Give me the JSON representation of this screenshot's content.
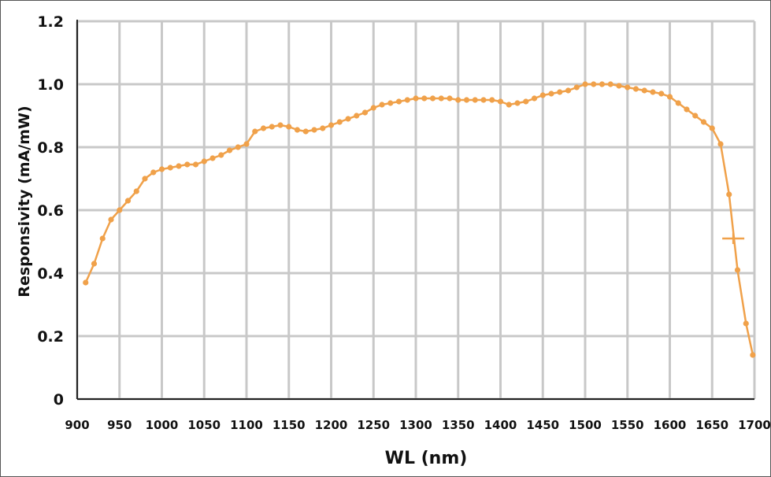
{
  "chart_data": {
    "type": "line",
    "xlabel": "WL (nm)",
    "ylabel": "Responsivity (mA/mW)",
    "xlim": [
      900,
      1700
    ],
    "ylim": [
      0,
      1.2
    ],
    "x_ticks": [
      "900",
      "950",
      "1000",
      "1050",
      "1100",
      "1150",
      "1200",
      "1250",
      "1300",
      "1350",
      "1400",
      "1450",
      "1500",
      "1550",
      "1600",
      "1650",
      "1700"
    ],
    "y_ticks": [
      "0",
      "0.2",
      "0.4",
      "0.6",
      "0.8",
      "1.0",
      "1.2"
    ],
    "grid": true,
    "legend": "none",
    "colors": {
      "series": "#f0a14a",
      "grid": "#c8c8c8",
      "axis": "#222222"
    },
    "series": [
      {
        "x": [
          910,
          920,
          930,
          940,
          950,
          960,
          970,
          980,
          990,
          1000,
          1010,
          1020,
          1030,
          1040,
          1050,
          1060,
          1070,
          1080,
          1090,
          1100,
          1110,
          1120,
          1130,
          1140,
          1150,
          1160,
          1170,
          1180,
          1190,
          1200,
          1210,
          1220,
          1230,
          1240,
          1250,
          1260,
          1270,
          1280,
          1290,
          1300,
          1310,
          1320,
          1330,
          1340,
          1350,
          1360,
          1370,
          1380,
          1390,
          1400,
          1410,
          1420,
          1430,
          1440,
          1450,
          1460,
          1470,
          1480,
          1490,
          1500,
          1510,
          1520,
          1530,
          1540,
          1550,
          1560,
          1570,
          1580,
          1590,
          1600,
          1610,
          1620,
          1630,
          1640,
          1650,
          1660,
          1670,
          1680,
          1690,
          1698
        ],
        "y": [
          0.37,
          0.43,
          0.51,
          0.57,
          0.6,
          0.63,
          0.66,
          0.7,
          0.72,
          0.73,
          0.735,
          0.74,
          0.745,
          0.745,
          0.755,
          0.765,
          0.775,
          0.79,
          0.8,
          0.81,
          0.85,
          0.86,
          0.865,
          0.87,
          0.865,
          0.855,
          0.85,
          0.855,
          0.86,
          0.87,
          0.88,
          0.89,
          0.9,
          0.91,
          0.925,
          0.935,
          0.94,
          0.945,
          0.95,
          0.955,
          0.955,
          0.955,
          0.955,
          0.955,
          0.95,
          0.95,
          0.95,
          0.95,
          0.95,
          0.945,
          0.935,
          0.94,
          0.945,
          0.955,
          0.965,
          0.97,
          0.975,
          0.98,
          0.99,
          1.0,
          1.0,
          1.0,
          1.0,
          0.995,
          0.99,
          0.985,
          0.98,
          0.975,
          0.97,
          0.96,
          0.94,
          0.92,
          0.9,
          0.88,
          0.86,
          0.81,
          0.65,
          0.41,
          0.24,
          0.14
        ]
      }
    ],
    "annotations": [
      {
        "type": "marker",
        "x": 1675,
        "y": 0.51
      }
    ]
  }
}
